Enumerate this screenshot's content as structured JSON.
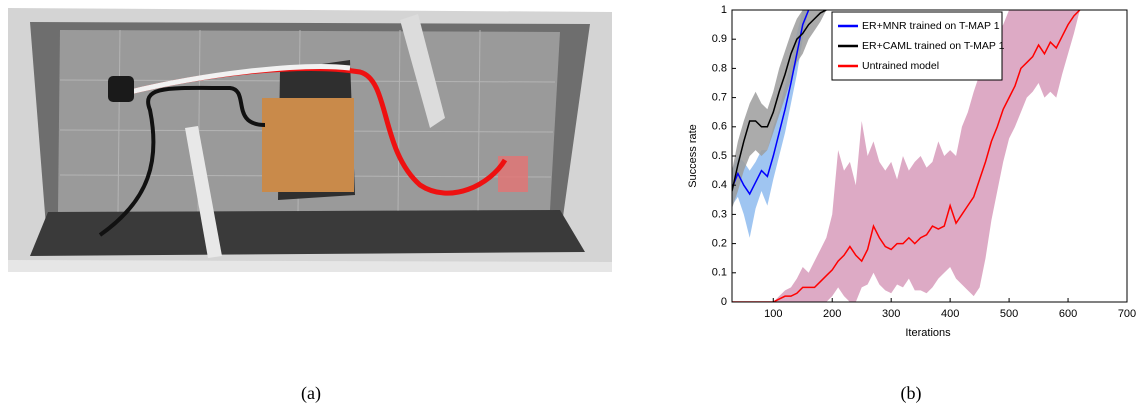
{
  "captions": [
    "(a)",
    "(b)"
  ],
  "chart_data": {
    "type": "line",
    "xlabel": "Iterations",
    "ylabel": "Success rate",
    "xlim": [
      30,
      700
    ],
    "ylim": [
      0,
      1
    ],
    "xticks": [
      100,
      200,
      300,
      400,
      500,
      600,
      700
    ],
    "yticks": [
      0,
      0.1,
      0.2,
      0.3,
      0.4,
      0.5,
      0.6,
      0.7,
      0.8,
      0.9,
      1
    ],
    "legend": "upper left",
    "series": [
      {
        "name": "Untrained model",
        "color": "#ff0000",
        "band_color": "#d79bbb",
        "x": [
          30,
          100,
          110,
          120,
          130,
          140,
          150,
          160,
          170,
          180,
          190,
          200,
          210,
          220,
          230,
          240,
          250,
          260,
          270,
          280,
          290,
          300,
          310,
          320,
          330,
          340,
          350,
          360,
          370,
          380,
          390,
          400,
          410,
          420,
          430,
          440,
          450,
          460,
          470,
          480,
          490,
          500,
          510,
          520,
          530,
          540,
          550,
          560,
          570,
          580,
          590,
          600,
          610,
          620
        ],
        "values": [
          0,
          0,
          0.01,
          0.02,
          0.02,
          0.03,
          0.05,
          0.05,
          0.05,
          0.07,
          0.09,
          0.11,
          0.14,
          0.16,
          0.19,
          0.16,
          0.14,
          0.18,
          0.26,
          0.22,
          0.19,
          0.18,
          0.2,
          0.2,
          0.22,
          0.2,
          0.22,
          0.23,
          0.26,
          0.25,
          0.26,
          0.33,
          0.27,
          0.3,
          0.33,
          0.36,
          0.42,
          0.48,
          0.55,
          0.6,
          0.66,
          0.7,
          0.74,
          0.8,
          0.82,
          0.84,
          0.88,
          0.85,
          0.89,
          0.87,
          0.91,
          0.95,
          0.98,
          1
        ],
        "band_low": [
          0,
          0,
          0,
          0,
          0,
          0,
          0,
          0,
          0,
          0,
          0,
          0.02,
          0.05,
          0.02,
          0,
          0,
          0.05,
          0.06,
          0.1,
          0.06,
          0.04,
          0.03,
          0.06,
          0.05,
          0.08,
          0.04,
          0.04,
          0.03,
          0.05,
          0.08,
          0.1,
          0.12,
          0.08,
          0.06,
          0.04,
          0.02,
          0.05,
          0.15,
          0.28,
          0.38,
          0.48,
          0.56,
          0.6,
          0.65,
          0.7,
          0.72,
          0.75,
          0.7,
          0.72,
          0.7,
          0.78,
          0.85,
          0.92,
          1
        ],
        "band_high": [
          0,
          0,
          0.02,
          0.04,
          0.05,
          0.08,
          0.12,
          0.1,
          0.14,
          0.18,
          0.22,
          0.3,
          0.52,
          0.45,
          0.48,
          0.4,
          0.62,
          0.5,
          0.55,
          0.48,
          0.45,
          0.48,
          0.42,
          0.5,
          0.45,
          0.48,
          0.5,
          0.46,
          0.48,
          0.55,
          0.5,
          0.52,
          0.5,
          0.6,
          0.65,
          0.72,
          0.78,
          0.82,
          0.88,
          0.92,
          0.95,
          1,
          1,
          1,
          1,
          1,
          1,
          1,
          1,
          1,
          1,
          1,
          1,
          1
        ]
      },
      {
        "name": "ER+MNR trained on T-MAP 1",
        "color": "#0000ff",
        "band_color": "#8ebbee",
        "x": [
          30,
          40,
          50,
          60,
          70,
          80,
          90,
          100,
          110,
          120,
          130,
          140,
          150,
          160
        ],
        "values": [
          0.39,
          0.44,
          0.4,
          0.37,
          0.41,
          0.45,
          0.43,
          0.5,
          0.58,
          0.66,
          0.75,
          0.85,
          0.95,
          1
        ],
        "band_low": [
          0.33,
          0.36,
          0.3,
          0.22,
          0.32,
          0.38,
          0.33,
          0.42,
          0.5,
          0.58,
          0.68,
          0.78,
          0.9,
          1
        ],
        "band_high": [
          0.45,
          0.5,
          0.48,
          0.45,
          0.48,
          0.52,
          0.52,
          0.6,
          0.66,
          0.74,
          0.82,
          0.92,
          1,
          1
        ]
      },
      {
        "name": "ER+CAML trained on T-MAP 1",
        "color": "#000000",
        "band_color": "#9c9c9c",
        "x": [
          30,
          40,
          50,
          60,
          70,
          80,
          90,
          100,
          110,
          120,
          130,
          140,
          150,
          160,
          170,
          180,
          190
        ],
        "values": [
          0.38,
          0.47,
          0.55,
          0.62,
          0.62,
          0.6,
          0.6,
          0.65,
          0.72,
          0.78,
          0.85,
          0.9,
          0.92,
          0.95,
          0.97,
          0.99,
          1
        ],
        "band_low": [
          0.32,
          0.38,
          0.45,
          0.5,
          0.52,
          0.5,
          0.52,
          0.58,
          0.64,
          0.7,
          0.76,
          0.82,
          0.85,
          0.9,
          0.93,
          0.96,
          1
        ],
        "band_high": [
          0.45,
          0.55,
          0.62,
          0.68,
          0.72,
          0.68,
          0.66,
          0.72,
          0.8,
          0.86,
          0.92,
          0.97,
          1,
          1,
          1,
          1,
          1
        ]
      }
    ]
  }
}
